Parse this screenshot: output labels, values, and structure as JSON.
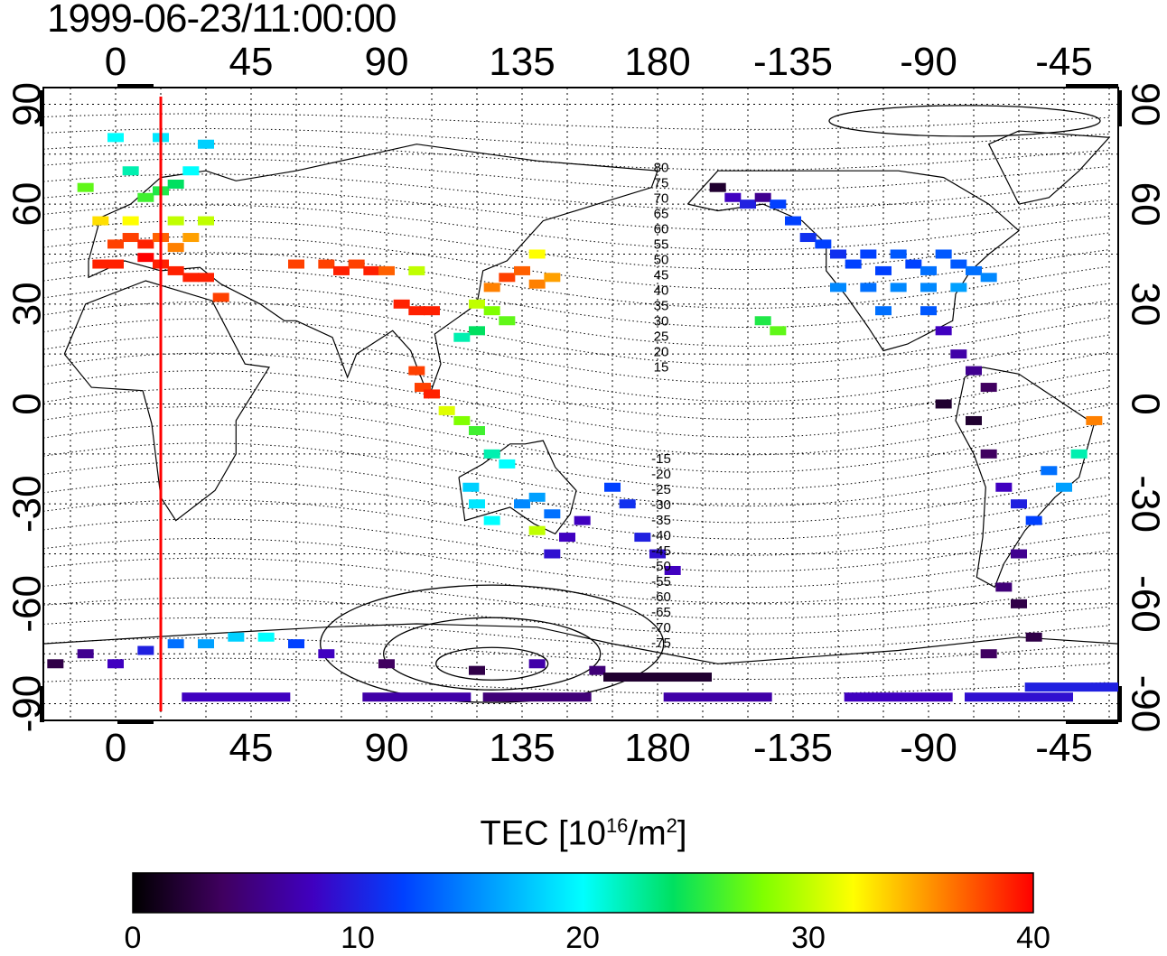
{
  "title": "1999-06-23/11:00:00",
  "map": {
    "lon_ticks": [
      "0",
      "45",
      "90",
      "135",
      "180",
      "-135",
      "-90",
      "-45"
    ],
    "lat_ticks": [
      "90",
      "60",
      "30",
      "0",
      "-30",
      "-60",
      "-90"
    ],
    "lon_tick_values": [
      0,
      45,
      90,
      135,
      180,
      225,
      270,
      315
    ],
    "lat_tick_values": [
      90,
      60,
      30,
      0,
      -30,
      -60,
      -90
    ],
    "lon_range": [
      -24,
      333
    ],
    "lat_range": [
      -95,
      95
    ],
    "grid": true,
    "contour_labels": [
      "80",
      "75",
      "70",
      "65",
      "60",
      "55",
      "50",
      "45",
      "40",
      "35",
      "30",
      "25",
      "20",
      "15",
      "-15",
      "-20",
      "-25",
      "-30",
      "-35",
      "-40",
      "-45",
      "-50",
      "-55",
      "-60",
      "-65",
      "-70",
      "-75"
    ],
    "marker_line_lon": 15,
    "marker_line_color": "#ff0000"
  },
  "colorbar": {
    "title_prefix": "TEC  [10",
    "title_exp1": "16",
    "title_mid": "/m",
    "title_exp2": "2",
    "title_suffix": "]",
    "ticks": [
      "0",
      "10",
      "20",
      "30",
      "40"
    ],
    "range": [
      0,
      40
    ],
    "colors": [
      "#000000",
      "#400060",
      "#4000c0",
      "#0040ff",
      "#00a0ff",
      "#00ffff",
      "#00e060",
      "#80ff00",
      "#ffff00",
      "#ff8000",
      "#ff0000"
    ]
  },
  "chart_data": {
    "type": "heatmap",
    "title": "1999-06-23/11:00:00",
    "xlabel": "",
    "ylabel": "",
    "value_label": "TEC  [10^16/m^2]",
    "value_range": [
      0,
      40
    ],
    "cells_lon_lat_tec": [
      [
        0,
        48,
        38
      ],
      [
        5,
        50,
        38
      ],
      [
        10,
        48,
        39
      ],
      [
        15,
        50,
        37
      ],
      [
        20,
        47,
        36
      ],
      [
        25,
        50,
        35
      ],
      [
        -5,
        42,
        39
      ],
      [
        0,
        42,
        39
      ],
      [
        10,
        44,
        40
      ],
      [
        15,
        42,
        39
      ],
      [
        20,
        40,
        39
      ],
      [
        30,
        38,
        39
      ],
      [
        -5,
        55,
        33
      ],
      [
        5,
        55,
        32
      ],
      [
        20,
        55,
        30
      ],
      [
        30,
        55,
        30
      ],
      [
        10,
        62,
        26
      ],
      [
        15,
        64,
        25
      ],
      [
        20,
        66,
        24
      ],
      [
        25,
        70,
        20
      ],
      [
        5,
        70,
        22
      ],
      [
        -10,
        65,
        27
      ],
      [
        0,
        80,
        20
      ],
      [
        15,
        80,
        19
      ],
      [
        30,
        78,
        18
      ],
      [
        25,
        38,
        39
      ],
      [
        35,
        32,
        38
      ],
      [
        70,
        42,
        38
      ],
      [
        75,
        40,
        39
      ],
      [
        80,
        42,
        38
      ],
      [
        85,
        40,
        39
      ],
      [
        90,
        40,
        37
      ],
      [
        100,
        40,
        30
      ],
      [
        95,
        30,
        39
      ],
      [
        100,
        28,
        39
      ],
      [
        105,
        28,
        39
      ],
      [
        60,
        42,
        38
      ],
      [
        125,
        35,
        36
      ],
      [
        130,
        38,
        38
      ],
      [
        135,
        40,
        37
      ],
      [
        140,
        36,
        36
      ],
      [
        145,
        38,
        35
      ],
      [
        140,
        45,
        32
      ],
      [
        120,
        30,
        30
      ],
      [
        125,
        28,
        28
      ],
      [
        130,
        25,
        27
      ],
      [
        120,
        22,
        24
      ],
      [
        115,
        20,
        22
      ],
      [
        100,
        10,
        38
      ],
      [
        102,
        5,
        38
      ],
      [
        105,
        3,
        39
      ],
      [
        110,
        -2,
        31
      ],
      [
        115,
        -5,
        28
      ],
      [
        120,
        -8,
        26
      ],
      [
        125,
        -15,
        22
      ],
      [
        130,
        -18,
        20
      ],
      [
        118,
        -25,
        18
      ],
      [
        120,
        -30,
        19
      ],
      [
        125,
        -35,
        20
      ],
      [
        135,
        -30,
        15
      ],
      [
        140,
        -28,
        16
      ],
      [
        145,
        -33,
        14
      ],
      [
        140,
        -38,
        30
      ],
      [
        150,
        -40,
        8
      ],
      [
        155,
        -35,
        8
      ],
      [
        145,
        -45,
        9
      ],
      [
        165,
        -25,
        12
      ],
      [
        170,
        -30,
        11
      ],
      [
        175,
        -40,
        10
      ],
      [
        180,
        -45,
        9
      ],
      [
        185,
        -50,
        8
      ],
      [
        200,
        65,
        2
      ],
      [
        205,
        62,
        8
      ],
      [
        210,
        60,
        10
      ],
      [
        215,
        62,
        6
      ],
      [
        220,
        60,
        12
      ],
      [
        225,
        55,
        12
      ],
      [
        230,
        50,
        11
      ],
      [
        235,
        48,
        12
      ],
      [
        240,
        45,
        11
      ],
      [
        245,
        42,
        12
      ],
      [
        250,
        45,
        12
      ],
      [
        255,
        40,
        12
      ],
      [
        260,
        45,
        13
      ],
      [
        265,
        42,
        12
      ],
      [
        270,
        40,
        14
      ],
      [
        275,
        45,
        13
      ],
      [
        280,
        42,
        13
      ],
      [
        285,
        40,
        14
      ],
      [
        240,
        35,
        15
      ],
      [
        250,
        35,
        14
      ],
      [
        260,
        35,
        15
      ],
      [
        270,
        35,
        15
      ],
      [
        280,
        35,
        16
      ],
      [
        290,
        38,
        15
      ],
      [
        255,
        28,
        14
      ],
      [
        270,
        28,
        13
      ],
      [
        215,
        25,
        25
      ],
      [
        220,
        22,
        27
      ],
      [
        275,
        22,
        8
      ],
      [
        280,
        15,
        7
      ],
      [
        285,
        10,
        6
      ],
      [
        290,
        5,
        4
      ],
      [
        275,
        0,
        2
      ],
      [
        285,
        -5,
        2
      ],
      [
        290,
        -15,
        4
      ],
      [
        295,
        -25,
        8
      ],
      [
        300,
        -30,
        10
      ],
      [
        305,
        -35,
        12
      ],
      [
        310,
        -20,
        14
      ],
      [
        315,
        -25,
        16
      ],
      [
        320,
        -15,
        22
      ],
      [
        325,
        -5,
        36
      ],
      [
        300,
        -45,
        6
      ],
      [
        295,
        -55,
        5
      ],
      [
        300,
        -60,
        3
      ],
      [
        305,
        -70,
        3
      ],
      [
        290,
        -75,
        4
      ],
      [
        -20,
        -78,
        3
      ],
      [
        -10,
        -75,
        6
      ],
      [
        0,
        -78,
        8
      ],
      [
        10,
        -74,
        10
      ],
      [
        20,
        -72,
        14
      ],
      [
        30,
        -72,
        16
      ],
      [
        40,
        -70,
        18
      ],
      [
        50,
        -70,
        20
      ],
      [
        60,
        -72,
        12
      ],
      [
        70,
        -75,
        8
      ],
      [
        90,
        -78,
        4
      ],
      [
        120,
        -80,
        3
      ],
      [
        140,
        -78,
        7
      ],
      [
        160,
        -80,
        5
      ],
      [
        180,
        -82,
        2
      ],
      [
        40,
        -88,
        8
      ],
      [
        100,
        -88,
        7
      ],
      [
        140,
        -88,
        5
      ],
      [
        200,
        -88,
        7
      ],
      [
        260,
        -88,
        8
      ],
      [
        300,
        -88,
        9
      ],
      [
        320,
        -85,
        10
      ]
    ]
  }
}
